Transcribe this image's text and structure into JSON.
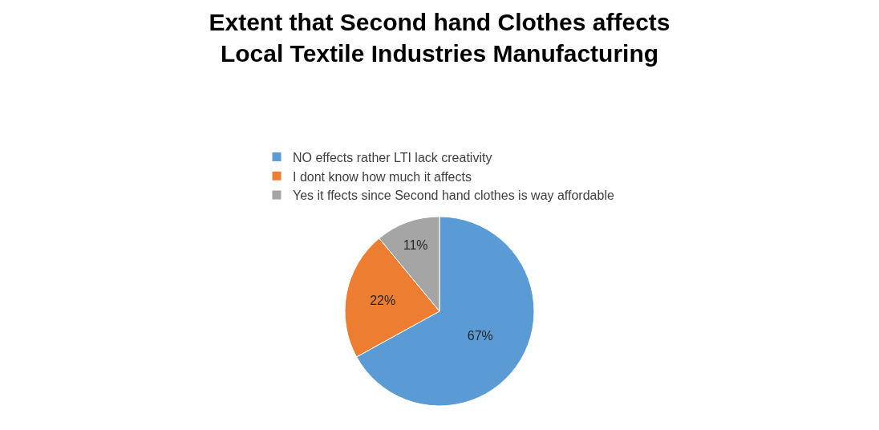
{
  "chart_data": {
    "type": "pie",
    "title": "Extent that Second hand Clothes affects Local Textile Industries Manufacturing",
    "categories": [
      "NO effects rather LTI lack creativity",
      "I dont know how much it affects",
      "Yes it ffects since Second hand clothes is way affordable"
    ],
    "values": [
      67,
      22,
      11
    ],
    "colors": [
      "#5b9bd5",
      "#ed7d31",
      "#a5a5a5"
    ],
    "value_labels": [
      "67%",
      "22%",
      "11%"
    ],
    "legend": "top"
  }
}
